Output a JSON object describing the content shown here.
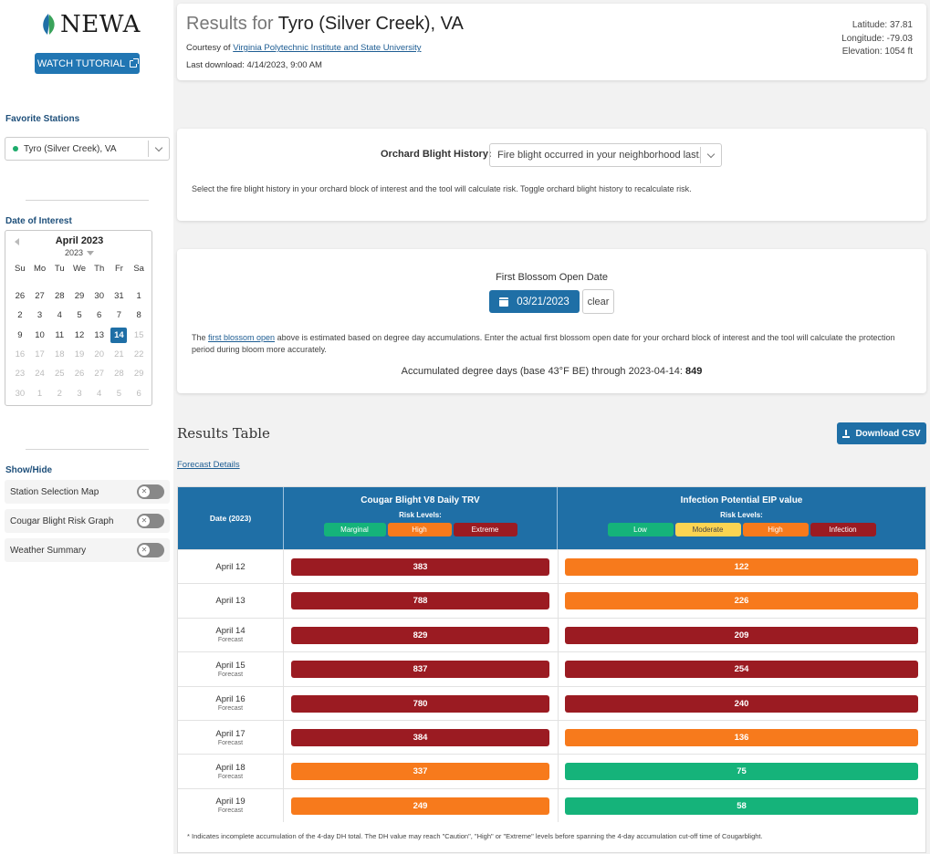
{
  "app": {
    "logo_text": "NEWA",
    "tutorial_label": "WATCH TUTORIAL"
  },
  "sidebar": {
    "favorite_heading": "Favorite Stations",
    "station": "Tyro (Silver Creek), VA",
    "date_heading": "Date of Interest",
    "showhide_heading": "Show/Hide",
    "toggles": [
      {
        "label": "Station Selection Map",
        "on": false
      },
      {
        "label": "Cougar Blight Risk Graph",
        "on": false
      },
      {
        "label": "Weather Summary",
        "on": false
      }
    ]
  },
  "calendar": {
    "title": "April 2023",
    "year": "2023",
    "dow": [
      "Su",
      "Mo",
      "Tu",
      "We",
      "Th",
      "Fr",
      "Sa"
    ],
    "selected": "14",
    "weeks": [
      [
        [
          "26",
          "n"
        ],
        [
          "27",
          "n"
        ],
        [
          "28",
          "n"
        ],
        [
          "29",
          "n"
        ],
        [
          "30",
          "n"
        ],
        [
          "31",
          "n"
        ],
        [
          "1",
          "n"
        ]
      ],
      [
        [
          "2",
          "n"
        ],
        [
          "3",
          "n"
        ],
        [
          "4",
          "n"
        ],
        [
          "5",
          "n"
        ],
        [
          "6",
          "n"
        ],
        [
          "7",
          "n"
        ],
        [
          "8",
          "n"
        ]
      ],
      [
        [
          "9",
          "n"
        ],
        [
          "10",
          "n"
        ],
        [
          "11",
          "n"
        ],
        [
          "12",
          "n"
        ],
        [
          "13",
          "n"
        ],
        [
          "14",
          "s"
        ],
        [
          "15",
          "d"
        ]
      ],
      [
        [
          "16",
          "d"
        ],
        [
          "17",
          "d"
        ],
        [
          "18",
          "d"
        ],
        [
          "19",
          "d"
        ],
        [
          "20",
          "d"
        ],
        [
          "21",
          "d"
        ],
        [
          "22",
          "d"
        ]
      ],
      [
        [
          "23",
          "d"
        ],
        [
          "24",
          "d"
        ],
        [
          "25",
          "d"
        ],
        [
          "26",
          "d"
        ],
        [
          "27",
          "d"
        ],
        [
          "28",
          "d"
        ],
        [
          "29",
          "d"
        ]
      ],
      [
        [
          "30",
          "d"
        ],
        [
          "1",
          "d"
        ],
        [
          "2",
          "d"
        ],
        [
          "3",
          "d"
        ],
        [
          "4",
          "d"
        ],
        [
          "5",
          "d"
        ],
        [
          "6",
          "d"
        ]
      ]
    ]
  },
  "header": {
    "prefix": "Results for",
    "station": "Tyro (Silver Creek), VA",
    "courtesy_prefix": "Courtesy of",
    "courtesy_link": "Virginia Polytechnic Institute and State University",
    "last_download": "Last download: 4/14/2023, 9:00 AM",
    "latitude": "Latitude: 37.81",
    "longitude": "Longitude: -79.03",
    "elevation": "Elevation: 1054 ft"
  },
  "history": {
    "label": "Orchard Blight History:",
    "value": "Fire blight occurred in your neighborhood last...",
    "note": "Select the fire blight history in your orchard block of interest and the tool will calculate risk. Toggle orchard blight history to recalculate risk."
  },
  "blossom": {
    "title": "First Blossom Open Date",
    "date": "03/21/2023",
    "clear_label": "clear",
    "note_prefix": "The",
    "note_link": "first blossom open",
    "note_rest": "above is estimated based on degree day accumulations. Enter the actual first blossom open date for your orchard block of interest and the tool will calculate the protection period during bloom more accurately.",
    "accum_label": "Accumulated degree days (base 43°F BE) through 2023-04-14:",
    "accum_value": "849"
  },
  "results": {
    "heading": "Results Table",
    "csv_label": "Download CSV",
    "forecast_link": "Forecast Details"
  },
  "table": {
    "date_header": "Date (2023)",
    "cb_header": "Cougar Blight V8 Daily TRV",
    "eip_header": "Infection Potential EIP value",
    "risk_label": "Risk Levels:",
    "cb_levels": [
      {
        "label": "Marginal",
        "color": "#15b37a",
        "text": "#ffffff",
        "w": 68
      },
      {
        "label": "High",
        "color": "#f77a1c",
        "text": "#ffffff",
        "w": 70
      },
      {
        "label": "Extreme",
        "color": "#9b1b22",
        "text": "#ffffff",
        "w": 70
      }
    ],
    "eip_levels": [
      {
        "label": "Low",
        "color": "#15b37a",
        "text": "#ffffff",
        "w": 72
      },
      {
        "label": "Moderate",
        "color": "#fbd452",
        "text": "#444444",
        "w": 72
      },
      {
        "label": "High",
        "color": "#f77a1c",
        "text": "#ffffff",
        "w": 72
      },
      {
        "label": "Infection",
        "color": "#9b1b22",
        "text": "#ffffff",
        "w": 72
      }
    ],
    "rows": [
      {
        "date": "April 12",
        "forecast": "",
        "cb": "383",
        "cb_level": "Extreme",
        "eip": "122",
        "eip_level": "High"
      },
      {
        "date": "April 13",
        "forecast": "",
        "cb": "788",
        "cb_level": "Extreme",
        "eip": "226",
        "eip_level": "High"
      },
      {
        "date": "April 14",
        "forecast": "Forecast",
        "cb": "829",
        "cb_level": "Extreme",
        "eip": "209",
        "eip_level": "Infection"
      },
      {
        "date": "April 15",
        "forecast": "Forecast",
        "cb": "837",
        "cb_level": "Extreme",
        "eip": "254",
        "eip_level": "Infection"
      },
      {
        "date": "April 16",
        "forecast": "Forecast",
        "cb": "780",
        "cb_level": "Extreme",
        "eip": "240",
        "eip_level": "Infection"
      },
      {
        "date": "April 17",
        "forecast": "Forecast",
        "cb": "384",
        "cb_level": "Extreme",
        "eip": "136",
        "eip_level": "High"
      },
      {
        "date": "April 18",
        "forecast": "Forecast",
        "cb": "337",
        "cb_level": "High",
        "eip": "75",
        "eip_level": "Low"
      },
      {
        "date": "April 19",
        "forecast": "Forecast",
        "cb": "249",
        "cb_level": "High",
        "eip": "58",
        "eip_level": "Low"
      }
    ],
    "footnote": "* Indicates incomplete accumulation of the 4-day DH total. The DH value may reach \"Caution\", \"High\" or \"Extreme\" levels before spanning the 4-day accumulation cut-off time of Cougarblight."
  },
  "colors": {
    "primary": "#1f6fa6",
    "extreme": "#9b1b22",
    "high": "#f77a1c",
    "low": "#15b37a",
    "moderate": "#fbd452"
  }
}
